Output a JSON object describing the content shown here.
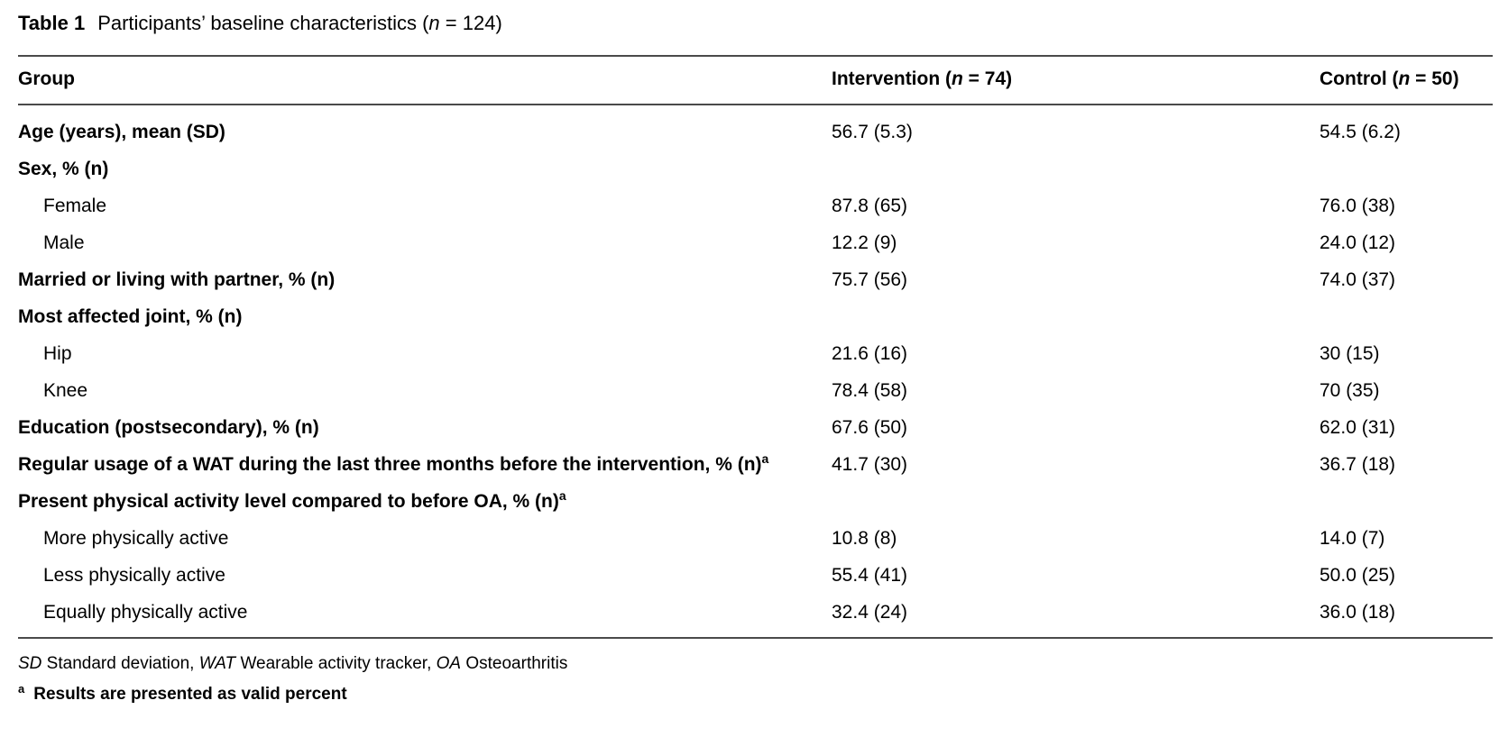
{
  "caption": {
    "label": "Table 1",
    "text_before": "Participants’ baseline characteristics (",
    "n_symbol": "n",
    "text_after": " = 124)"
  },
  "header": {
    "group": "Group",
    "intervention": {
      "pre": "Intervention (",
      "n": "n",
      "post": " = 74)"
    },
    "control": {
      "pre": "Control (",
      "n": "n",
      "post": " = 50)"
    }
  },
  "rows": [
    {
      "label": "Age (years), mean (SD)",
      "bold": true,
      "indent": false,
      "sup": "",
      "intervention": "56.7 (5.3)",
      "control": "54.5 (6.2)"
    },
    {
      "label": "Sex, % (n)",
      "bold": true,
      "indent": false,
      "sup": "",
      "intervention": "",
      "control": ""
    },
    {
      "label": "Female",
      "bold": false,
      "indent": true,
      "sup": "",
      "intervention": "87.8 (65)",
      "control": "76.0 (38)"
    },
    {
      "label": "Male",
      "bold": false,
      "indent": true,
      "sup": "",
      "intervention": "12.2 (9)",
      "control": "24.0 (12)"
    },
    {
      "label": "Married or living with partner, % (n)",
      "bold": true,
      "indent": false,
      "sup": "",
      "intervention": "75.7 (56)",
      "control": "74.0 (37)"
    },
    {
      "label": "Most affected joint, % (n)",
      "bold": true,
      "indent": false,
      "sup": "",
      "intervention": "",
      "control": ""
    },
    {
      "label": "Hip",
      "bold": false,
      "indent": true,
      "sup": "",
      "intervention": "21.6 (16)",
      "control": "30 (15)"
    },
    {
      "label": "Knee",
      "bold": false,
      "indent": true,
      "sup": "",
      "intervention": "78.4 (58)",
      "control": "70 (35)"
    },
    {
      "label": "Education (postsecondary), % (n)",
      "bold": true,
      "indent": false,
      "sup": "",
      "intervention": "67.6 (50)",
      "control": "62.0 (31)"
    },
    {
      "label": "Regular usage of a WAT during the last three months before the intervention, % (n)",
      "bold": true,
      "indent": false,
      "sup": "a",
      "intervention": "41.7 (30)",
      "control": "36.7 (18)"
    },
    {
      "label": "Present physical activity level compared to before OA, % (n)",
      "bold": true,
      "indent": false,
      "sup": "a",
      "intervention": "",
      "control": ""
    },
    {
      "label": "More physically active",
      "bold": false,
      "indent": true,
      "sup": "",
      "intervention": "10.8 (8)",
      "control": "14.0 (7)"
    },
    {
      "label": "Less physically active",
      "bold": false,
      "indent": true,
      "sup": "",
      "intervention": "55.4 (41)",
      "control": "50.0 (25)"
    },
    {
      "label": "Equally physically active",
      "bold": false,
      "indent": true,
      "sup": "",
      "intervention": "32.4 (24)",
      "control": "36.0 (18)"
    }
  ],
  "footnotes": {
    "abbreviations": [
      {
        "term": "SD",
        "definition": " Standard deviation, "
      },
      {
        "term": "WAT",
        "definition": " Wearable activity tracker, "
      },
      {
        "term": "OA",
        "definition": " Osteoarthritis"
      }
    ],
    "note": {
      "marker": "a",
      "text": "Results are presented as valid percent"
    }
  },
  "colors": {
    "rule": "#4a4a4a",
    "text": "#000000",
    "background": "#ffffff"
  }
}
